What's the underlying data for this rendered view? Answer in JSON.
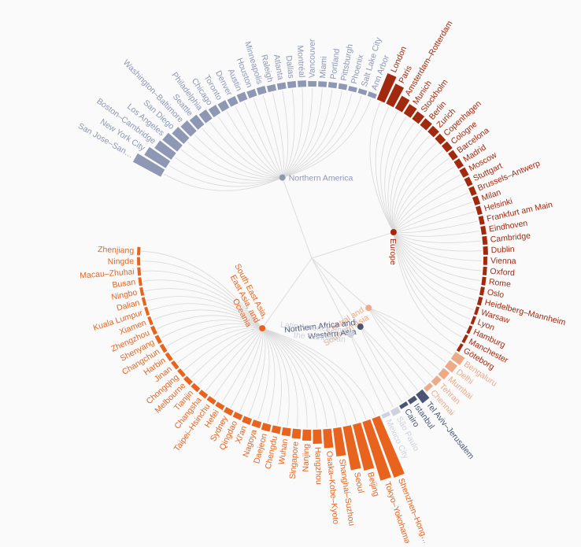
{
  "chart_data": {
    "type": "radial-bar",
    "title": "",
    "region_colors": {
      "asia": "#e8641e",
      "na": "#8e97b4",
      "europe": "#a3290e",
      "latam": "#cdd2de",
      "mena": "#4a5575",
      "csa": "#ecaa87"
    },
    "regions": [
      {
        "key": "na",
        "label_lines": [
          "Northern America"
        ],
        "text_color": "#8e97b4"
      },
      {
        "key": "europe",
        "label_lines": [
          "Europe"
        ],
        "text_color": "#a3290e"
      },
      {
        "key": "csa",
        "label_lines": [
          "Central and",
          "Southern Asia"
        ],
        "text_color": "#ecaa87"
      },
      {
        "key": "mena",
        "label_lines": [
          "Northern Africa and",
          "Western Asia"
        ],
        "text_color": "#4a5575"
      },
      {
        "key": "latam",
        "label_lines": [
          "Latin America and",
          "the Caribbean"
        ],
        "text_color": "#cdd2de"
      },
      {
        "key": "asia",
        "label_lines": [
          "South East Asia,",
          "East Asia, and",
          "Oceania"
        ],
        "text_color": "#e8641e"
      }
    ],
    "cities": [
      {
        "name": "San Jose–San…",
        "region": "na",
        "value": 40
      },
      {
        "name": "New York City",
        "region": "na",
        "value": 32
      },
      {
        "name": "Boston–Cambridge",
        "region": "na",
        "value": 26
      },
      {
        "name": "Los Angeles",
        "region": "na",
        "value": 24
      },
      {
        "name": "San Diego",
        "region": "na",
        "value": 20
      },
      {
        "name": "Washington–Baltimore",
        "region": "na",
        "value": 18
      },
      {
        "name": "Seattle",
        "region": "na",
        "value": 16
      },
      {
        "name": "Philadelphia",
        "region": "na",
        "value": 14
      },
      {
        "name": "Chicago",
        "region": "na",
        "value": 12
      },
      {
        "name": "Toronto",
        "region": "na",
        "value": 11
      },
      {
        "name": "Denver",
        "region": "na",
        "value": 10
      },
      {
        "name": "Austin",
        "region": "na",
        "value": 10
      },
      {
        "name": "Houston",
        "region": "na",
        "value": 9
      },
      {
        "name": "Minneapolis",
        "region": "na",
        "value": 9
      },
      {
        "name": "Raleigh",
        "region": "na",
        "value": 8
      },
      {
        "name": "Atlanta",
        "region": "na",
        "value": 8
      },
      {
        "name": "Dallas",
        "region": "na",
        "value": 8
      },
      {
        "name": "Montréal",
        "region": "na",
        "value": 8
      },
      {
        "name": "Vancouver",
        "region": "na",
        "value": 7
      },
      {
        "name": "Miami",
        "region": "na",
        "value": 7
      },
      {
        "name": "Portland",
        "region": "na",
        "value": 7
      },
      {
        "name": "Pittsburgh",
        "region": "na",
        "value": 7
      },
      {
        "name": "Phoenix",
        "region": "na",
        "value": 6
      },
      {
        "name": "Salt Lake City",
        "region": "na",
        "value": 6
      },
      {
        "name": "Ann Arbor",
        "region": "na",
        "value": 6
      },
      {
        "name": "London",
        "region": "europe",
        "value": 36
      },
      {
        "name": "Paris",
        "region": "europe",
        "value": 28
      },
      {
        "name": "Amsterdam–Rotterdam",
        "region": "europe",
        "value": 18
      },
      {
        "name": "Munich",
        "region": "europe",
        "value": 14
      },
      {
        "name": "Stockholm",
        "region": "europe",
        "value": 12
      },
      {
        "name": "Berlin",
        "region": "europe",
        "value": 11
      },
      {
        "name": "Zurich",
        "region": "europe",
        "value": 10
      },
      {
        "name": "Copenhagen",
        "region": "europe",
        "value": 9
      },
      {
        "name": "Cologne",
        "region": "europe",
        "value": 9
      },
      {
        "name": "Barcelona",
        "region": "europe",
        "value": 8
      },
      {
        "name": "Madrid",
        "region": "europe",
        "value": 8
      },
      {
        "name": "Moscow",
        "region": "europe",
        "value": 8
      },
      {
        "name": "Stuttgart",
        "region": "europe",
        "value": 7
      },
      {
        "name": "Brussels–Antwerp",
        "region": "europe",
        "value": 7
      },
      {
        "name": "Milan",
        "region": "europe",
        "value": 7
      },
      {
        "name": "Helsinki",
        "region": "europe",
        "value": 6
      },
      {
        "name": "Frankfurt am Main",
        "region": "europe",
        "value": 6
      },
      {
        "name": "Eindhoven",
        "region": "europe",
        "value": 6
      },
      {
        "name": "Cambridge",
        "region": "europe",
        "value": 6
      },
      {
        "name": "Dublin",
        "region": "europe",
        "value": 6
      },
      {
        "name": "Vienna",
        "region": "europe",
        "value": 5
      },
      {
        "name": "Oxford",
        "region": "europe",
        "value": 5
      },
      {
        "name": "Rome",
        "region": "europe",
        "value": 5
      },
      {
        "name": "Oslo",
        "region": "europe",
        "value": 5
      },
      {
        "name": "Heidelberg–Mannheim",
        "region": "europe",
        "value": 5
      },
      {
        "name": "Warsaw",
        "region": "europe",
        "value": 4
      },
      {
        "name": "Lyon",
        "region": "europe",
        "value": 4
      },
      {
        "name": "Hamburg",
        "region": "europe",
        "value": 4
      },
      {
        "name": "Manchester",
        "region": "europe",
        "value": 4
      },
      {
        "name": "Göteborg",
        "region": "europe",
        "value": 4
      },
      {
        "name": "Bengaluru",
        "region": "csa",
        "value": 14
      },
      {
        "name": "Delhi",
        "region": "csa",
        "value": 12
      },
      {
        "name": "Mumbai",
        "region": "csa",
        "value": 10
      },
      {
        "name": "Tehran",
        "region": "csa",
        "value": 8
      },
      {
        "name": "Chennai",
        "region": "csa",
        "value": 6
      },
      {
        "name": "Tel Aviv–Jerusalem",
        "region": "mena",
        "value": 14
      },
      {
        "name": "Istanbul",
        "region": "mena",
        "value": 6
      },
      {
        "name": "Cairo",
        "region": "mena",
        "value": 5
      },
      {
        "name": "São Paulo",
        "region": "latam",
        "value": 8
      },
      {
        "name": "Mexico City",
        "region": "latam",
        "value": 5
      },
      {
        "name": "Shenzhen–Hong…",
        "region": "asia",
        "value": 80
      },
      {
        "name": "Tokyo–Yokohama",
        "region": "asia",
        "value": 78
      },
      {
        "name": "Beijing",
        "region": "asia",
        "value": 60
      },
      {
        "name": "Seoul",
        "region": "asia",
        "value": 56
      },
      {
        "name": "Shanghai–Suzhou",
        "region": "asia",
        "value": 36
      },
      {
        "name": "Osaka–Kobe–Kyoto",
        "region": "asia",
        "value": 24
      },
      {
        "name": "Hangzhou",
        "region": "asia",
        "value": 18
      },
      {
        "name": "Nanjing",
        "region": "asia",
        "value": 14
      },
      {
        "name": "Singapore",
        "region": "asia",
        "value": 12
      },
      {
        "name": "Wuhan",
        "region": "asia",
        "value": 10
      },
      {
        "name": "Chengdu",
        "region": "asia",
        "value": 9
      },
      {
        "name": "Daejeon",
        "region": "asia",
        "value": 9
      },
      {
        "name": "Nagoya",
        "region": "asia",
        "value": 8
      },
      {
        "name": "Xi'an",
        "region": "asia",
        "value": 8
      },
      {
        "name": "Qingdao",
        "region": "asia",
        "value": 7
      },
      {
        "name": "Sydney",
        "region": "asia",
        "value": 7
      },
      {
        "name": "Hefei",
        "region": "asia",
        "value": 6
      },
      {
        "name": "Taipei–Hsinchu",
        "region": "asia",
        "value": 6
      },
      {
        "name": "Changsha",
        "region": "asia",
        "value": 6
      },
      {
        "name": "Tianjin",
        "region": "asia",
        "value": 6
      },
      {
        "name": "Melbourne",
        "region": "asia",
        "value": 6
      },
      {
        "name": "Chongqing",
        "region": "asia",
        "value": 5
      },
      {
        "name": "Jinan",
        "region": "asia",
        "value": 5
      },
      {
        "name": "Harbin",
        "region": "asia",
        "value": 5
      },
      {
        "name": "Changchun",
        "region": "asia",
        "value": 5
      },
      {
        "name": "Shenyang",
        "region": "asia",
        "value": 5
      },
      {
        "name": "Zhengzhou",
        "region": "asia",
        "value": 5
      },
      {
        "name": "Xiamen",
        "region": "asia",
        "value": 4
      },
      {
        "name": "Kuala Lumpur",
        "region": "asia",
        "value": 4
      },
      {
        "name": "Dalian",
        "region": "asia",
        "value": 4
      },
      {
        "name": "Ningbo",
        "region": "asia",
        "value": 4
      },
      {
        "name": "Busan",
        "region": "asia",
        "value": 4
      },
      {
        "name": "Macau–Zhuhai",
        "region": "asia",
        "value": 4
      },
      {
        "name": "Ningde",
        "region": "asia",
        "value": 4
      },
      {
        "name": "Zhenjiang",
        "region": "asia",
        "value": 4
      }
    ]
  }
}
